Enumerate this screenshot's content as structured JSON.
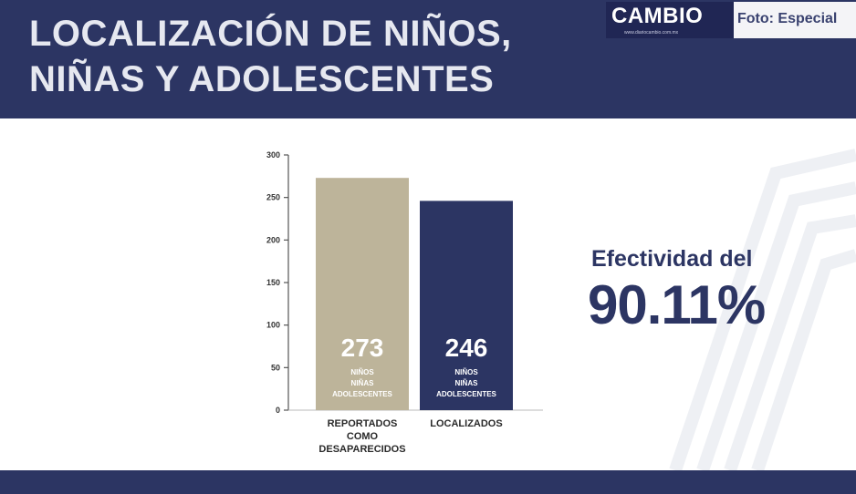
{
  "header": {
    "title_line1": "LOCALIZACIÓN DE NIÑOS,",
    "title_line2": "NIÑAS Y ADOLESCENTES"
  },
  "brand": {
    "logo": "CAMBIO",
    "url": "www.diariocambio.com.mx",
    "photo_credit": "Foto: Especial"
  },
  "effectiveness": {
    "label": "Efectividad del",
    "value": "90.11%"
  },
  "colors": {
    "navy": "#2c3563",
    "tan": "#bdb49a"
  },
  "chart_data": {
    "type": "bar",
    "ylim": [
      0,
      300
    ],
    "yticks": [
      0,
      50,
      100,
      150,
      200,
      250,
      300
    ],
    "bars": [
      {
        "value": 273,
        "value_label": "273",
        "inner_label": [
          "NIÑOS",
          "NIÑAS",
          "ADOLESCENTES"
        ],
        "category": [
          "REPORTADOS",
          "COMO",
          "DESAPARECIDOS"
        ],
        "color": "#bdb49a"
      },
      {
        "value": 246,
        "value_label": "246",
        "inner_label": [
          "NIÑOS",
          "NIÑAS",
          "ADOLESCENTES"
        ],
        "category": [
          "LOCALIZADOS"
        ],
        "color": "#2c3563"
      }
    ]
  }
}
